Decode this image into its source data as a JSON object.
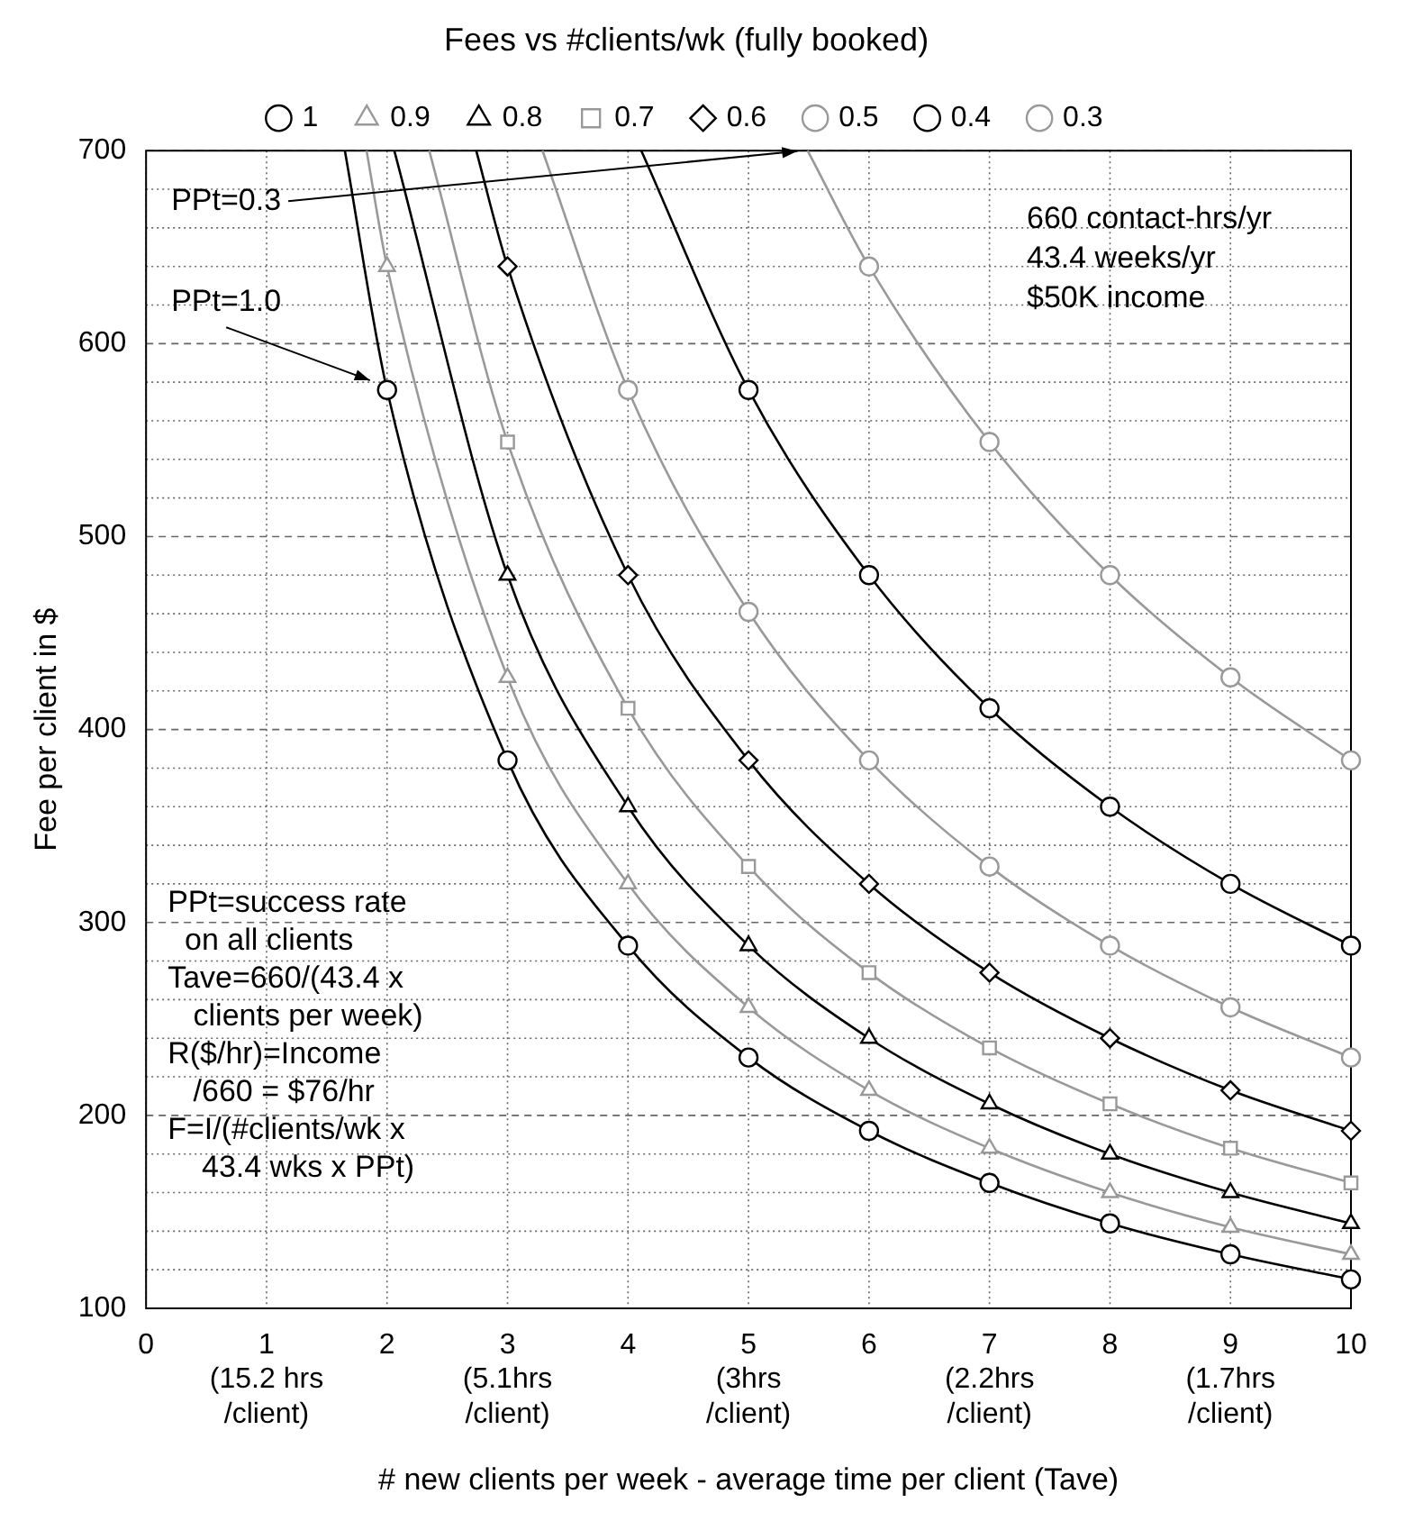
{
  "chart_data": {
    "type": "line",
    "title": "Fees vs #clients/wk (fully booked)",
    "xlabel": "# new clients per week - average time per client (Tave)",
    "ylabel": "Fee per client in $",
    "xlim": [
      0,
      10
    ],
    "xticks": [
      0,
      {
        "value": 1,
        "label": "1\n(15.2 hrs\n/client)"
      },
      2,
      {
        "value": 3,
        "label": "3\n(5.1hrs\n/client)"
      },
      4,
      {
        "value": 5,
        "label": "5\n(3hrs\n/client)"
      },
      6,
      {
        "value": 7,
        "label": "7\n(2.2hrs\n/client)"
      },
      8,
      {
        "value": 9,
        "label": "9\n(1.7hrs\n/client)"
      },
      10
    ],
    "ylim": [
      100,
      700
    ],
    "yticks": [
      100,
      {
        "value": 120,
        "label": null
      },
      {
        "value": 140,
        "label": null
      },
      {
        "value": 160,
        "label": null
      },
      {
        "value": 180,
        "label": null
      },
      200,
      {
        "value": 220,
        "label": null
      },
      {
        "value": 240,
        "label": null
      },
      {
        "value": 260,
        "label": null
      },
      {
        "value": 280,
        "label": null
      },
      300,
      {
        "value": 320,
        "label": null
      },
      {
        "value": 340,
        "label": null
      },
      {
        "value": 360,
        "label": null
      },
      {
        "value": 380,
        "label": null
      },
      400,
      {
        "value": 420,
        "label": null
      },
      {
        "value": 440,
        "label": null
      },
      {
        "value": 460,
        "label": null
      },
      {
        "value": 480,
        "label": null
      },
      500,
      {
        "value": 520,
        "label": null
      },
      {
        "value": 540,
        "label": null
      },
      {
        "value": 560,
        "label": null
      },
      {
        "value": 580,
        "label": null
      },
      600,
      {
        "value": 620,
        "label": null
      },
      {
        "value": 640,
        "label": null
      },
      {
        "value": 660,
        "label": null
      },
      {
        "value": 680,
        "label": null
      },
      700
    ],
    "grid": true,
    "legend": "top",
    "line_style": "solid",
    "series": [
      {
        "name": "1",
        "color": "#000000",
        "marker": "circle",
        "x": [
          1.65,
          2,
          3,
          4,
          5,
          6,
          7,
          8,
          9,
          10
        ],
        "values": [
          700,
          576,
          384,
          288,
          230,
          192,
          165,
          144,
          128,
          115
        ]
      },
      {
        "name": "0.9",
        "color": "#999999",
        "marker": "triangle",
        "x": [
          1.83,
          2,
          3,
          4,
          5,
          6,
          7,
          8,
          9,
          10
        ],
        "values": [
          700,
          640,
          427,
          320,
          256,
          213,
          183,
          160,
          142,
          128
        ]
      },
      {
        "name": "0.8",
        "color": "#000000",
        "marker": "triangle",
        "x": [
          2.06,
          3,
          4,
          5,
          6,
          7,
          8,
          9,
          10
        ],
        "values": [
          700,
          480,
          360,
          288,
          240,
          206,
          180,
          160,
          144
        ]
      },
      {
        "name": "0.7",
        "color": "#999999",
        "marker": "square",
        "x": [
          2.35,
          3,
          4,
          5,
          6,
          7,
          8,
          9,
          10
        ],
        "values": [
          700,
          549,
          411,
          329,
          274,
          235,
          206,
          183,
          165
        ]
      },
      {
        "name": "0.6",
        "color": "#000000",
        "marker": "diamond",
        "x": [
          2.74,
          3,
          4,
          5,
          6,
          7,
          8,
          9,
          10
        ],
        "values": [
          700,
          640,
          480,
          384,
          320,
          274,
          240,
          213,
          192
        ]
      },
      {
        "name": "0.5",
        "color": "#999999",
        "marker": "circle",
        "x": [
          3.29,
          4,
          5,
          6,
          7,
          8,
          9,
          10
        ],
        "values": [
          700,
          576,
          461,
          384,
          329,
          288,
          256,
          230
        ]
      },
      {
        "name": "0.4",
        "color": "#000000",
        "marker": "circle",
        "x": [
          4.11,
          5,
          6,
          7,
          8,
          9,
          10
        ],
        "values": [
          700,
          576,
          480,
          411,
          360,
          320,
          288
        ]
      },
      {
        "name": "0.3",
        "color": "#999999",
        "marker": "circle",
        "x": [
          5.49,
          6,
          7,
          8,
          9,
          10
        ],
        "values": [
          700,
          640,
          549,
          480,
          427,
          384
        ]
      }
    ],
    "annotations": [
      {
        "text": "PPt=0.3",
        "x": 5.45,
        "y": 700
      },
      {
        "text": "PPt=1.0",
        "x": 1.9,
        "y": 580
      },
      "660 contact-hrs/yr\n43.4 weeks/yr\n$50K income",
      "PPt=success rate\n  on all clients\nTave=660/(43.4 x\n   clients per week)\nR($/hr)=Income\n   /660 = $76/hr\nF=I/(#clients/wk x\n    43.4 wks x PPt)"
    ]
  }
}
